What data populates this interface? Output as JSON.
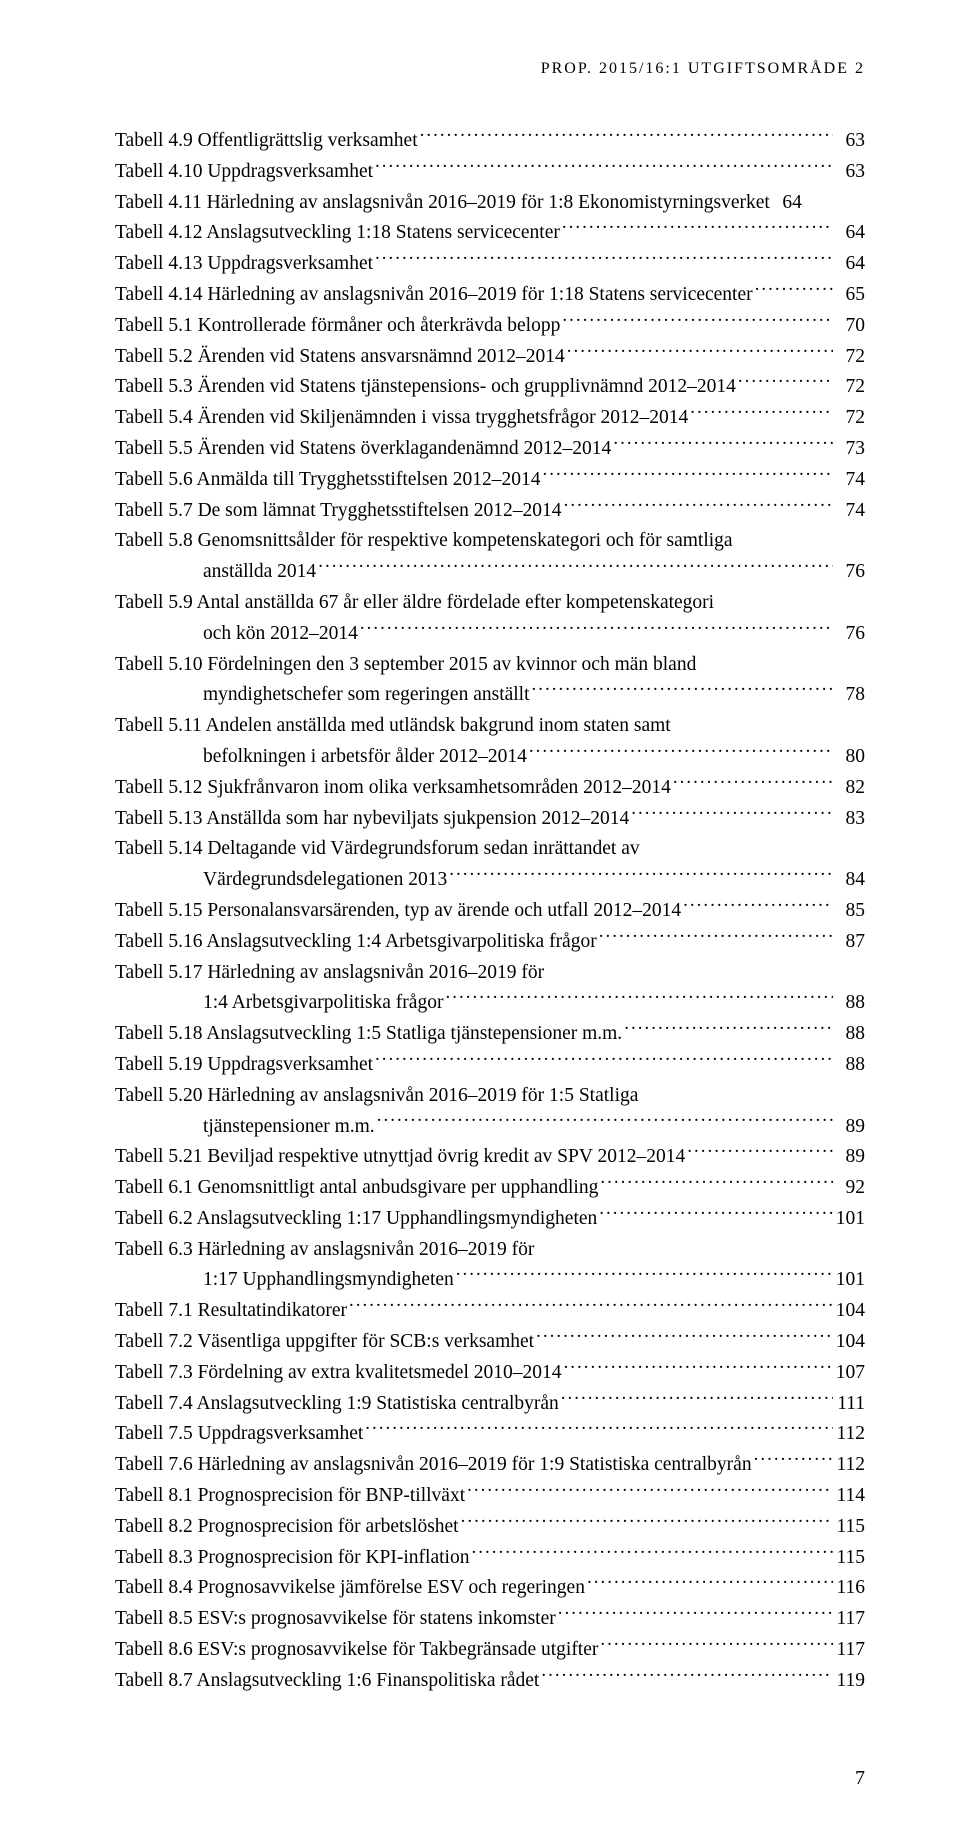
{
  "header": "PROP. 2015/16:1 UTGIFTSOMRÅDE 2",
  "page_number": "7",
  "entries": [
    {
      "label": "Tabell 4.9 Offentligrättslig verksamhet",
      "page": "63"
    },
    {
      "label": "Tabell 4.10 Uppdragsverksamhet",
      "page": "63"
    },
    {
      "label": "Tabell 4.11 Härledning av anslagsnivån 2016–2019 för 1:8 Ekonomistyrningsverket",
      "page": "64",
      "no_leader": true,
      "tight": true
    },
    {
      "label": "Tabell 4.12 Anslagsutveckling 1:18 Statens servicecenter",
      "page": "64"
    },
    {
      "label": "Tabell 4.13 Uppdragsverksamhet",
      "page": "64"
    },
    {
      "label": "Tabell 4.14 Härledning av anslagsnivån 2016–2019 för 1:18 Statens servicecenter",
      "page": "65"
    },
    {
      "label": "Tabell 5.1 Kontrollerade förmåner och återkrävda belopp",
      "page": "70"
    },
    {
      "label": "Tabell 5.2 Ärenden vid Statens ansvarsnämnd 2012–2014",
      "page": "72"
    },
    {
      "label": "Tabell 5.3 Ärenden vid Statens tjänstepensions- och grupplivnämnd 2012–2014",
      "page": "72"
    },
    {
      "label": "Tabell 5.4 Ärenden vid Skiljenämnden i vissa trygghetsfrågor 2012–2014",
      "page": "72"
    },
    {
      "label": "Tabell 5.5 Ärenden vid Statens överklagandenämnd  2012–2014",
      "page": "73"
    },
    {
      "label": "Tabell 5.6 Anmälda till Trygghetsstiftelsen 2012–2014",
      "page": "74"
    },
    {
      "label": "Tabell 5.7 De som lämnat Trygghetsstiftelsen 2012–2014",
      "page": "74"
    },
    {
      "label": "Tabell 5.8 Genomsnittsålder för respektive kompetenskategori och för samtliga",
      "page": ""
    },
    {
      "cont": true,
      "label": "anställda 2014",
      "page": "76"
    },
    {
      "label": "Tabell 5.9 Antal anställda 67 år eller äldre fördelade efter kompetenskategori",
      "page": ""
    },
    {
      "cont": true,
      "label": "och kön 2012–2014",
      "page": "76"
    },
    {
      "label": "Tabell 5.10 Fördelningen den 3 september 2015 av kvinnor och män bland",
      "page": ""
    },
    {
      "cont": true,
      "label": "myndighetschefer som regeringen anställt",
      "page": "78"
    },
    {
      "label": "Tabell 5.11 Andelen anställda med utländsk bakgrund inom staten samt",
      "page": ""
    },
    {
      "cont": true,
      "label": "befolkningen i arbetsför ålder 2012–2014",
      "page": "80"
    },
    {
      "label": "Tabell 5.12 Sjukfrånvaron inom olika verksamhetsområden 2012–2014",
      "page": "82"
    },
    {
      "label": "Tabell 5.13 Anställda som har nybeviljats sjukpension 2012–2014",
      "page": "83"
    },
    {
      "label": "Tabell 5.14 Deltagande vid Värdegrundsforum sedan inrättandet av",
      "page": ""
    },
    {
      "cont": true,
      "label": "Värdegrundsdelegationen 2013",
      "page": "84"
    },
    {
      "label": "Tabell 5.15 Personalansvarsärenden, typ av ärende och utfall 2012–2014",
      "page": "85"
    },
    {
      "label": "Tabell 5.16 Anslagsutveckling 1:4 Arbetsgivarpolitiska frågor",
      "page": "87"
    },
    {
      "label": "Tabell 5.17 Härledning av anslagsnivån 2016–2019 för",
      "page": ""
    },
    {
      "cont": true,
      "label": "1:4 Arbetsgivarpolitiska frågor",
      "page": "88"
    },
    {
      "label": "Tabell 5.18 Anslagsutveckling 1:5 Statliga tjänstepensioner m.m.",
      "page": "88"
    },
    {
      "label": "Tabell 5.19 Uppdragsverksamhet",
      "page": "88"
    },
    {
      "label": "Tabell 5.20 Härledning av anslagsnivån 2016–2019 för 1:5 Statliga",
      "page": ""
    },
    {
      "cont": true,
      "label": "tjänstepensioner m.m.",
      "page": "89"
    },
    {
      "label": "Tabell 5.21 Beviljad respektive utnyttjad övrig kredit av SPV 2012–2014",
      "page": "89"
    },
    {
      "label": "Tabell 6.1 Genomsnittligt antal anbudsgivare per upphandling",
      "page": "92"
    },
    {
      "label": "Tabell 6.2 Anslagsutveckling 1:17 Upphandlingsmyndigheten",
      "page": "101"
    },
    {
      "label": "Tabell 6.3 Härledning av anslagsnivån 2016–2019 för",
      "page": ""
    },
    {
      "cont": true,
      "label": "1:17 Upphandlingsmyndigheten",
      "page": "101"
    },
    {
      "label": "Tabell 7.1 Resultatindikatorer",
      "page": "104"
    },
    {
      "label": "Tabell 7.2 Väsentliga uppgifter för SCB:s verksamhet",
      "page": "104"
    },
    {
      "label": "Tabell 7.3 Fördelning av extra kvalitetsmedel 2010–2014",
      "page": "107"
    },
    {
      "label": "Tabell 7.4 Anslagsutveckling 1:9 Statistiska centralbyrån",
      "page": "111"
    },
    {
      "label": "Tabell 7.5 Uppdragsverksamhet",
      "page": "112"
    },
    {
      "label": "Tabell 7.6 Härledning av anslagsnivån 2016–2019 för 1:9 Statistiska centralbyrån",
      "page": "112"
    },
    {
      "label": "Tabell 8.1 Prognosprecision för BNP-tillväxt",
      "page": "114"
    },
    {
      "label": "Tabell 8.2 Prognosprecision för arbetslöshet",
      "page": "115"
    },
    {
      "label": "Tabell 8.3 Prognosprecision för KPI-inflation",
      "page": "115"
    },
    {
      "label": "Tabell 8.4 Prognosavvikelse jämförelse ESV och regeringen",
      "page": "116"
    },
    {
      "label": "Tabell 8.5 ESV:s prognosavvikelse för statens inkomster",
      "page": "117"
    },
    {
      "label": "Tabell 8.6 ESV:s prognosavvikelse för Takbegränsade utgifter",
      "page": "117"
    },
    {
      "label": "Tabell 8.7 Anslagsutveckling 1:6 Finanspolitiska rådet",
      "page": "119"
    }
  ]
}
